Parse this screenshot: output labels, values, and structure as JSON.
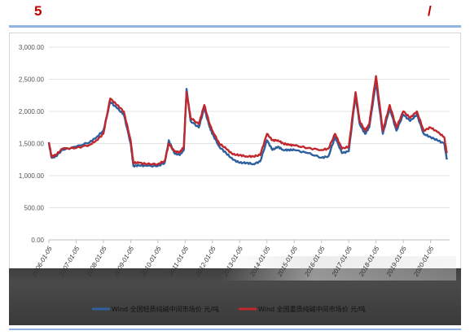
{
  "header": {
    "number": "5",
    "slash": "/"
  },
  "chart_data": {
    "type": "line",
    "y_ticks": [
      "3,000.00",
      "2,500.00",
      "2,000.00",
      "1,500.00",
      "1,000.00",
      "500.00",
      "0.00"
    ],
    "ylim": [
      0,
      3000
    ],
    "x_ticks": [
      "2006-01-05",
      "2007-01-05",
      "2008-01-05",
      "2009-01-05",
      "2010-01-05",
      "2011-01-05",
      "2012-01-05",
      "2013-01-05",
      "2014-01-05",
      "2015-01-05",
      "2016-01-05",
      "2017-01-05",
      "2018-01-05",
      "2019-01-05",
      "2020-01-05"
    ],
    "x": [
      2006.0,
      2006.1,
      2006.25,
      2006.5,
      2007.0,
      2007.5,
      2007.75,
      2008.0,
      2008.25,
      2008.5,
      2008.75,
      2009.0,
      2009.1,
      2009.3,
      2009.6,
      2010.0,
      2010.25,
      2010.4,
      2010.6,
      2010.8,
      2010.95,
      2011.05,
      2011.2,
      2011.5,
      2011.7,
      2011.9,
      2012.0,
      2012.25,
      2012.5,
      2012.75,
      2013.0,
      2013.25,
      2013.5,
      2013.75,
      2014.0,
      2014.2,
      2014.4,
      2014.6,
      2014.8,
      2015.0,
      2015.5,
      2016.0,
      2016.25,
      2016.5,
      2016.75,
      2017.0,
      2017.25,
      2017.4,
      2017.6,
      2017.75,
      2018.0,
      2018.25,
      2018.5,
      2018.75,
      2019.0,
      2019.25,
      2019.5,
      2019.75,
      2020.0,
      2020.25,
      2020.5,
      2020.6
    ],
    "series": [
      {
        "name": "Wind 全国轻质纯碱中间市场价 元/吨",
        "color": "#2e5f9e",
        "values": [
          1500,
          1280,
          1300,
          1400,
          1450,
          1520,
          1600,
          1700,
          2150,
          2050,
          1950,
          1500,
          1150,
          1160,
          1150,
          1150,
          1200,
          1550,
          1350,
          1320,
          1400,
          2350,
          1850,
          1750,
          2050,
          1750,
          1650,
          1450,
          1350,
          1250,
          1200,
          1200,
          1180,
          1220,
          1550,
          1400,
          1450,
          1400,
          1400,
          1400,
          1350,
          1280,
          1300,
          1600,
          1350,
          1380,
          2250,
          1800,
          1650,
          1750,
          2450,
          1650,
          2050,
          1700,
          1950,
          1850,
          1950,
          1650,
          1600,
          1550,
          1500,
          1250
        ]
      },
      {
        "name": "Wind 全国重质纯碱中间市场价 元/吨",
        "color": "#c0282d",
        "values": [
          1520,
          1300,
          1320,
          1420,
          1430,
          1480,
          1550,
          1650,
          2200,
          2100,
          2000,
          1550,
          1200,
          1200,
          1180,
          1180,
          1230,
          1500,
          1380,
          1360,
          1450,
          2300,
          1900,
          1800,
          2100,
          1800,
          1700,
          1500,
          1420,
          1330,
          1320,
          1300,
          1300,
          1320,
          1650,
          1550,
          1550,
          1500,
          1480,
          1470,
          1430,
          1400,
          1420,
          1650,
          1420,
          1450,
          2300,
          1850,
          1700,
          1800,
          2550,
          1700,
          2100,
          1750,
          2000,
          1900,
          2000,
          1700,
          1750,
          1680,
          1600,
          1350
        ]
      }
    ],
    "legend_position": "bottom"
  }
}
